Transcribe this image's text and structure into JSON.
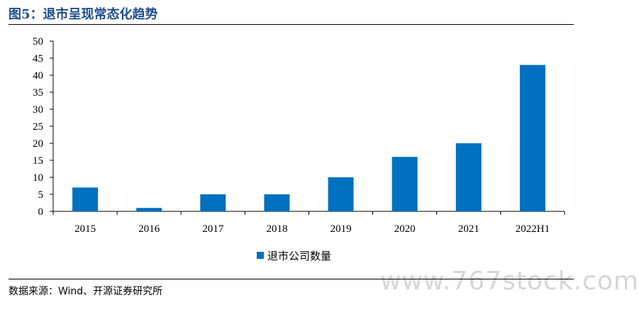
{
  "figure": {
    "title": "图5：退市呈现常态化趋势",
    "source": "数据来源：Wind、开源证券研究所",
    "watermark": "www.767stock.com"
  },
  "chart_data": {
    "type": "bar",
    "categories": [
      "2015",
      "2016",
      "2017",
      "2018",
      "2019",
      "2020",
      "2021",
      "2022H1"
    ],
    "series": [
      {
        "name": "退市公司数量",
        "values": [
          7,
          1,
          5,
          5,
          10,
          16,
          20,
          43
        ],
        "color": "#0070c0"
      }
    ],
    "ylim": [
      0,
      50
    ],
    "yticks": [
      0,
      5,
      10,
      15,
      20,
      25,
      30,
      35,
      40,
      45,
      50
    ],
    "grid": false,
    "legend": "bottom-center",
    "xlabel": "",
    "ylabel": ""
  }
}
